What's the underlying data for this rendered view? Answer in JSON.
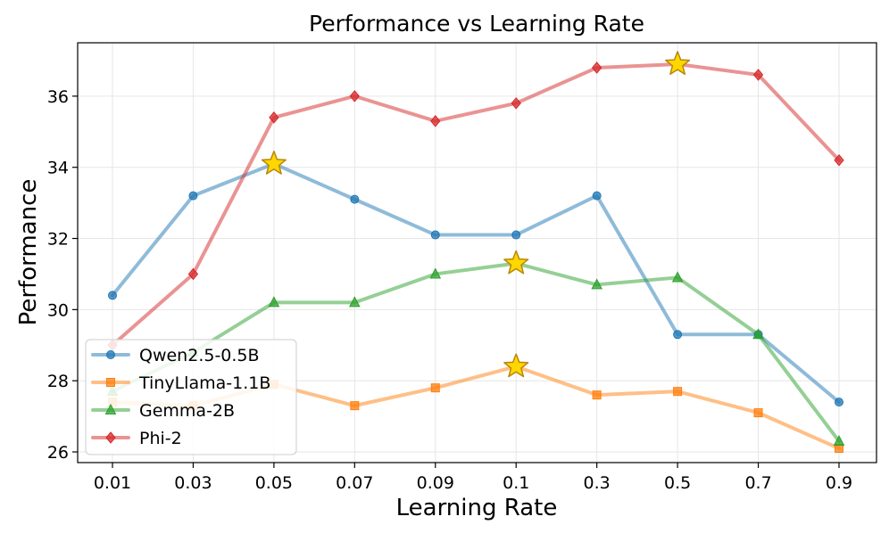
{
  "chart_data": {
    "type": "line",
    "title": "Performance vs Learning Rate",
    "xlabel": "Learning Rate",
    "ylabel": "Performance",
    "categories": [
      "0.01",
      "0.03",
      "0.05",
      "0.07",
      "0.09",
      "0.1",
      "0.3",
      "0.5",
      "0.7",
      "0.9"
    ],
    "ylim": [
      25.7,
      37.5
    ],
    "yticks": [
      26,
      28,
      30,
      32,
      34,
      36
    ],
    "grid": true,
    "legend_position": "bottom-left",
    "series": [
      {
        "name": "Qwen2.5-0.5B",
        "color": "#1f77b4",
        "marker": "circle",
        "values": [
          30.4,
          33.2,
          34.1,
          33.1,
          32.1,
          32.1,
          33.2,
          29.3,
          29.3,
          27.4
        ],
        "best_index": 2
      },
      {
        "name": "TinyLlama-1.1B",
        "color": "#ff7f0e",
        "marker": "square",
        "values": [
          27.4,
          27.3,
          27.9,
          27.3,
          27.8,
          28.4,
          27.6,
          27.7,
          27.1,
          26.1
        ],
        "best_index": 5
      },
      {
        "name": "Gemma-2B",
        "color": "#2ca02c",
        "marker": "triangle",
        "values": [
          27.7,
          28.8,
          30.2,
          30.2,
          31.0,
          31.3,
          30.7,
          30.9,
          29.3,
          26.3
        ],
        "best_index": 5
      },
      {
        "name": "Phi-2",
        "color": "#d62728",
        "marker": "diamond",
        "values": [
          29.0,
          31.0,
          35.4,
          36.0,
          35.3,
          35.8,
          36.8,
          36.9,
          36.6,
          34.2
        ],
        "best_index": 7
      }
    ],
    "best_marker": {
      "shape": "star",
      "color": "#FFD700",
      "edge_color": "#B8860B"
    }
  }
}
